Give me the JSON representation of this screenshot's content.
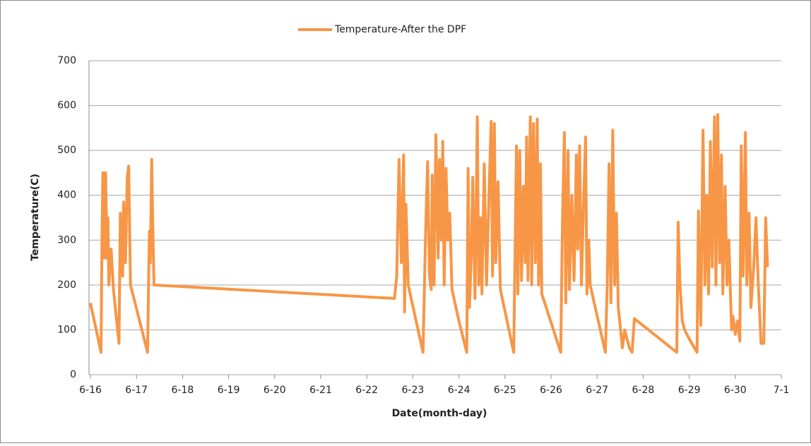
{
  "chart_data": {
    "type": "line",
    "xlabel": "Date(month-day)",
    "ylabel": "Temperature(C)",
    "x": [
      16.0,
      16.23,
      16.25,
      16.27,
      16.3,
      16.33,
      16.36,
      16.38,
      16.4,
      16.45,
      16.5,
      16.62,
      16.65,
      16.7,
      16.72,
      16.76,
      16.8,
      16.83,
      16.87,
      17.24,
      17.28,
      17.3,
      17.33,
      17.36,
      17.38,
      22.6,
      22.65,
      22.7,
      22.75,
      22.8,
      22.82,
      22.85,
      22.9,
      23.22,
      23.28,
      23.32,
      23.36,
      23.4,
      23.42,
      23.46,
      23.5,
      23.55,
      23.58,
      23.62,
      23.65,
      23.68,
      23.72,
      23.76,
      23.8,
      23.85,
      24.0,
      24.17,
      24.2,
      24.23,
      24.27,
      24.3,
      24.35,
      24.4,
      24.43,
      24.47,
      24.5,
      24.55,
      24.6,
      24.65,
      24.7,
      24.73,
      24.77,
      24.8,
      24.85,
      24.9,
      25.19,
      25.25,
      25.28,
      25.32,
      25.36,
      25.4,
      25.44,
      25.47,
      25.5,
      25.55,
      25.58,
      25.62,
      25.66,
      25.7,
      25.73,
      25.77,
      25.8,
      26.21,
      26.25,
      26.29,
      26.32,
      26.37,
      26.4,
      26.45,
      26.5,
      26.55,
      26.58,
      26.62,
      26.66,
      26.7,
      26.75,
      26.78,
      26.82,
      26.85,
      27.18,
      27.22,
      27.26,
      27.3,
      27.34,
      27.38,
      27.42,
      27.46,
      27.55,
      27.6,
      27.65,
      27.7,
      27.76,
      27.81,
      28.73,
      28.76,
      28.8,
      28.85,
      28.9,
      29.0,
      29.17,
      29.2,
      29.25,
      29.3,
      29.34,
      29.38,
      29.42,
      29.46,
      29.5,
      29.55,
      29.58,
      29.62,
      29.66,
      29.7,
      29.73,
      29.78,
      29.82,
      29.86,
      29.92,
      29.95,
      30.0,
      30.05,
      30.1,
      30.13,
      30.17,
      30.22,
      30.25,
      30.3,
      30.34,
      30.4,
      30.45,
      30.5,
      30.56,
      30.62,
      30.66,
      30.7
    ],
    "series": [
      {
        "name": "Temperature-After the DPF",
        "color": "#f79646",
        "values": [
          160,
          50,
          290,
          450,
          260,
          450,
          260,
          350,
          200,
          280,
          190,
          70,
          360,
          220,
          385,
          250,
          440,
          465,
          200,
          50,
          320,
          250,
          480,
          300,
          200,
          170,
          220,
          480,
          250,
          490,
          140,
          380,
          200,
          50,
          330,
          475,
          220,
          190,
          445,
          200,
          535,
          260,
          480,
          300,
          520,
          200,
          460,
          300,
          360,
          190,
          120,
          50,
          460,
          150,
          270,
          440,
          170,
          575,
          200,
          350,
          180,
          470,
          200,
          390,
          565,
          220,
          560,
          250,
          430,
          190,
          50,
          510,
          180,
          500,
          210,
          420,
          250,
          530,
          210,
          575,
          200,
          560,
          250,
          570,
          200,
          470,
          180,
          50,
          350,
          540,
          160,
          500,
          190,
          400,
          210,
          490,
          280,
          510,
          200,
          360,
          530,
          180,
          300,
          200,
          50,
          200,
          470,
          160,
          545,
          200,
          360,
          150,
          60,
          100,
          80,
          60,
          50,
          125,
          50,
          340,
          200,
          120,
          100,
          80,
          50,
          365,
          110,
          545,
          200,
          400,
          180,
          520,
          240,
          575,
          200,
          580,
          250,
          490,
          180,
          420,
          200,
          300,
          100,
          130,
          90,
          120,
          75,
          510,
          220,
          540,
          200,
          360,
          150,
          240,
          350,
          200,
          70,
          70,
          350,
          240
        ]
      }
    ],
    "xlim": [
      16,
      31
    ],
    "xticks": [
      {
        "value": 16,
        "label": "6-16"
      },
      {
        "value": 17,
        "label": "6-17"
      },
      {
        "value": 18,
        "label": "6-18"
      },
      {
        "value": 19,
        "label": "6-19"
      },
      {
        "value": 20,
        "label": "6-20"
      },
      {
        "value": 21,
        "label": "6-21"
      },
      {
        "value": 22,
        "label": "6-22"
      },
      {
        "value": 23,
        "label": "6-23"
      },
      {
        "value": 24,
        "label": "6-24"
      },
      {
        "value": 25,
        "label": "6-25"
      },
      {
        "value": 26,
        "label": "6-26"
      },
      {
        "value": 27,
        "label": "6-27"
      },
      {
        "value": 28,
        "label": "6-28"
      },
      {
        "value": 29,
        "label": "6-29"
      },
      {
        "value": 30,
        "label": "6-30"
      },
      {
        "value": 31,
        "label": "7-1"
      }
    ],
    "ylim": [
      0,
      700
    ],
    "yticks": [
      0,
      100,
      200,
      300,
      400,
      500,
      600,
      700
    ],
    "grid": true,
    "legend": "top"
  }
}
